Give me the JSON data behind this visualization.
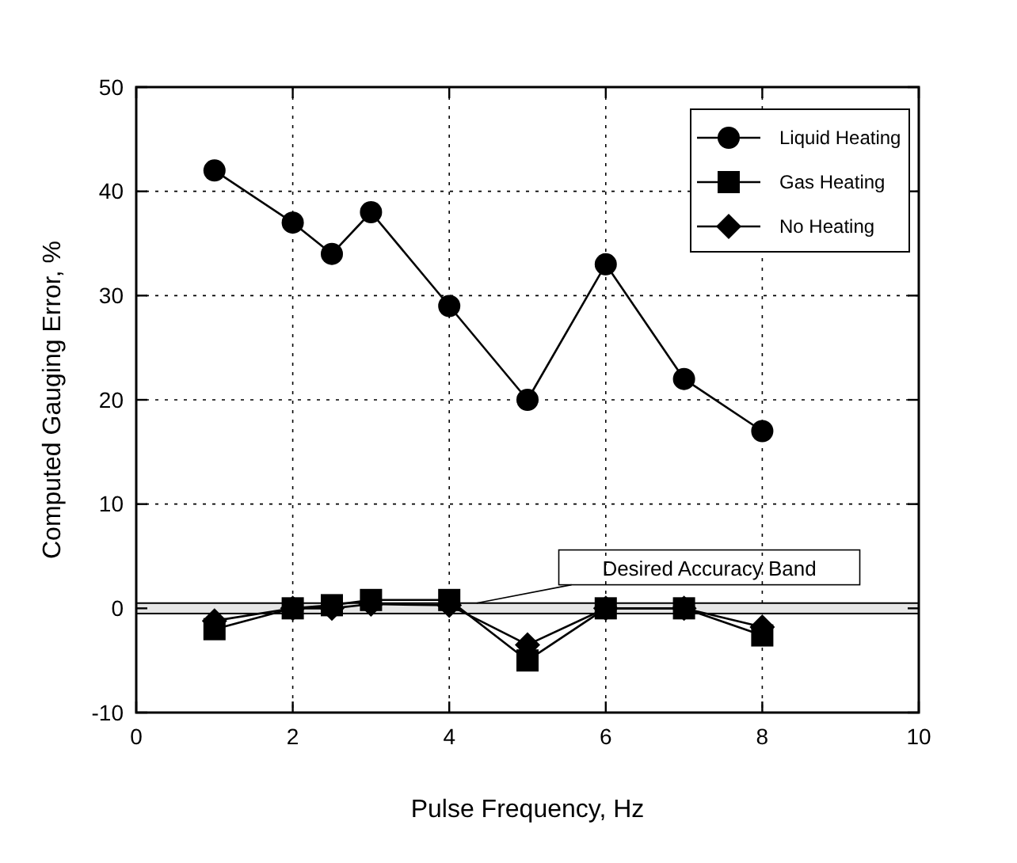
{
  "chart_data": {
    "type": "line",
    "xlabel": "Pulse Frequency, Hz",
    "ylabel": "Computed Gauging Error, %",
    "x": [
      1,
      2,
      2.5,
      3,
      4,
      5,
      6,
      7,
      8
    ],
    "series": [
      {
        "name": "Liquid Heating",
        "color": "#000000",
        "marker": "circle",
        "values": [
          42,
          37,
          34,
          38,
          29,
          20,
          33,
          22,
          17
        ]
      },
      {
        "name": "Gas Heating",
        "color": "#000000",
        "marker": "square",
        "values": [
          -2,
          0,
          0.3,
          0.8,
          0.8,
          -5,
          0,
          0,
          -2.6
        ]
      },
      {
        "name": "No Heating",
        "color": "#000000",
        "marker": "diamond",
        "values": [
          -1.2,
          0,
          0,
          0.4,
          0.3,
          -3.5,
          0,
          0,
          -1.8
        ]
      }
    ],
    "xlim": [
      0,
      10
    ],
    "xticks": [
      0,
      2,
      4,
      6,
      8,
      10
    ],
    "ylim": [
      -10,
      50
    ],
    "yticks": [
      -10,
      0,
      10,
      20,
      30,
      40,
      50
    ],
    "bands": [
      {
        "axis": "y",
        "from": -0.5,
        "to": 0.5,
        "label": "Desired Accuracy Band",
        "color": "#e6e6e6"
      }
    ],
    "grid": true,
    "legend": "top right",
    "line_style": "solid"
  }
}
